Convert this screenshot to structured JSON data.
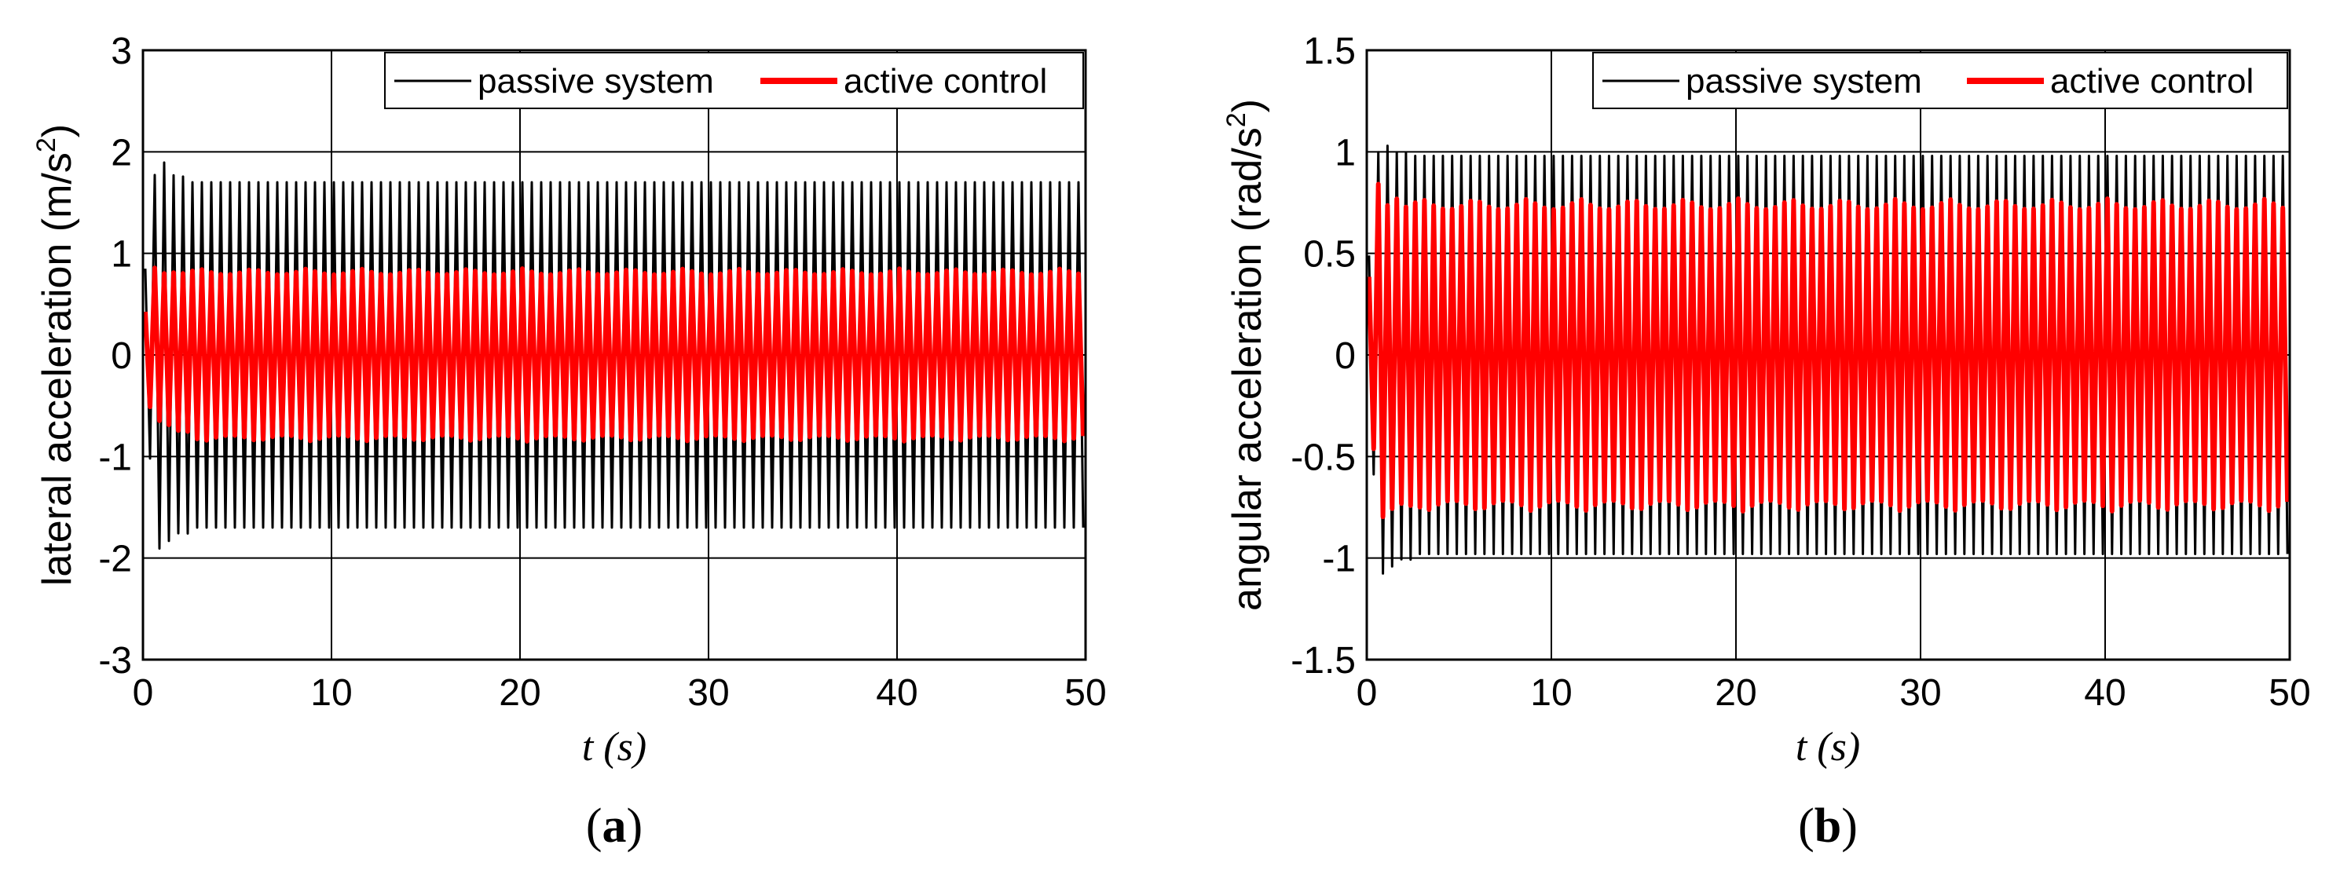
{
  "chart_data": [
    {
      "type": "line",
      "panel_label": "(a)",
      "panel_letter": "a",
      "xlabel": "t (s)",
      "ylabel": "lateral acceleration (m/s²)",
      "xlim": [
        0,
        50
      ],
      "ylim": [
        -3,
        3
      ],
      "xticks": [
        0,
        10,
        20,
        30,
        40,
        50
      ],
      "yticks": [
        -3,
        -2,
        -1,
        0,
        1,
        2,
        3
      ],
      "xtick_labels": [
        "0",
        "10",
        "20",
        "30",
        "40",
        "50"
      ],
      "ytick_labels": [
        "-3",
        "-2",
        "-1",
        "0",
        "1",
        "2",
        "3"
      ],
      "grid": true,
      "legend_position": "top-right",
      "series": [
        {
          "name": "passive system",
          "color": "#000000",
          "steady_amplitude": 1.7,
          "transient_peak": 2.05,
          "transient_trough": -2.0,
          "cycles": 100
        },
        {
          "name": "active control",
          "color": "#ff0000",
          "steady_amplitude": 0.85,
          "transient_peak": 0.9,
          "transient_trough": -0.6,
          "cycles": 100
        }
      ]
    },
    {
      "type": "line",
      "panel_label": "(b)",
      "panel_letter": "b",
      "xlabel": "t (s)",
      "ylabel": "angular acceleration (rad/s²)",
      "xlim": [
        0,
        50
      ],
      "ylim": [
        -1.5,
        1.5
      ],
      "xticks": [
        0,
        10,
        20,
        30,
        40,
        50
      ],
      "yticks": [
        -1.5,
        -1,
        -0.5,
        0,
        0.5,
        1,
        1.5
      ],
      "xtick_labels": [
        "0",
        "10",
        "20",
        "30",
        "40",
        "50"
      ],
      "ytick_labels": [
        "-1.5",
        "-1",
        "-0.5",
        "0",
        "0.5",
        "1",
        "1.5"
      ],
      "grid": true,
      "legend_position": "top-right",
      "series": [
        {
          "name": "passive system",
          "color": "#000000",
          "steady_amplitude": 0.98,
          "transient_peak": 1.07,
          "transient_trough": -1.12,
          "cycles": 100
        },
        {
          "name": "active control",
          "color": "#ff0000",
          "steady_amplitude": 0.77,
          "transient_peak": 0.9,
          "transient_trough": -0.85,
          "cycles": 100
        }
      ]
    }
  ]
}
